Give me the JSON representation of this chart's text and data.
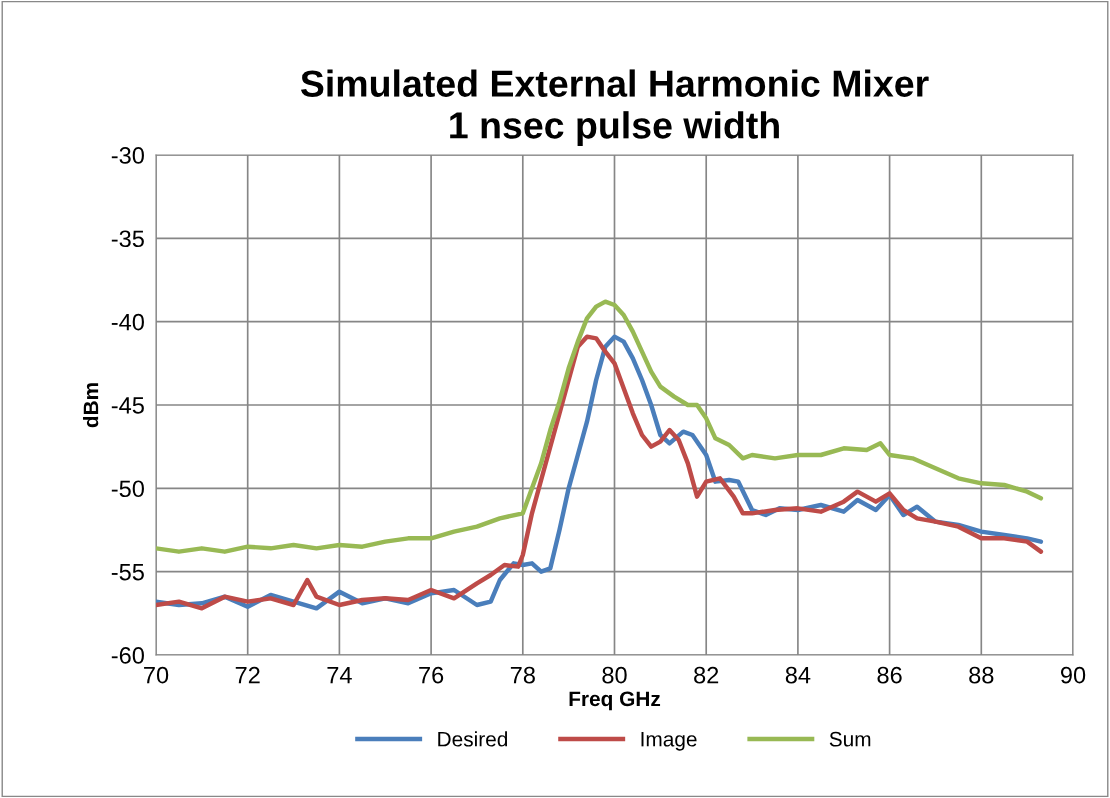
{
  "chart_data": {
    "type": "line",
    "title": "Simulated External Harmonic Mixer\n1 nsec pulse width",
    "xlabel": "Freq GHz",
    "ylabel": "dBm",
    "xlim": [
      70,
      90
    ],
    "xticks": [
      70,
      72,
      74,
      76,
      78,
      80,
      82,
      84,
      86,
      88,
      90
    ],
    "ylim": [
      -60,
      -30
    ],
    "yticks": [
      -60,
      -55,
      -50,
      -45,
      -40,
      -35,
      -30
    ],
    "grid": true,
    "legend": "bottom",
    "marker": "none",
    "line_style": "solid",
    "series": [
      {
        "name": "Desired",
        "color": "#4a7ebb",
        "x": [
          70,
          70.5,
          71,
          71.5,
          72,
          72.5,
          73,
          73.5,
          74,
          74.5,
          75,
          75.5,
          76,
          76.5,
          77,
          77.3,
          77.5,
          77.8,
          78,
          78.2,
          78.4,
          78.6,
          78.8,
          79,
          79.2,
          79.4,
          79.6,
          79.8,
          80,
          80.2,
          80.4,
          80.6,
          80.8,
          81,
          81.2,
          81.5,
          81.7,
          82,
          82.2,
          82.5,
          82.7,
          83,
          83.3,
          83.6,
          84,
          84.5,
          85,
          85.3,
          85.7,
          86,
          86.3,
          86.6,
          87,
          87.5,
          88,
          88.5,
          89,
          89.3
        ],
        "values": [
          -56.8,
          -57,
          -56.9,
          -56.5,
          -57.1,
          -56.4,
          -56.8,
          -57.2,
          -56.2,
          -56.9,
          -56.6,
          -56.9,
          -56.3,
          -56.1,
          -57,
          -56.8,
          -55.5,
          -54.5,
          -54.6,
          -54.5,
          -55.0,
          -54.8,
          -52.5,
          -50,
          -48,
          -46,
          -43.5,
          -41.5,
          -40.9,
          -41.2,
          -42.2,
          -43.5,
          -45.0,
          -46.8,
          -47.3,
          -46.6,
          -46.8,
          -48.0,
          -49.6,
          -49.5,
          -49.6,
          -51.3,
          -51.6,
          -51.2,
          -51.3,
          -51.0,
          -51.4,
          -50.7,
          -51.3,
          -50.4,
          -51.6,
          -51.1,
          -52.0,
          -52.2,
          -52.6,
          -52.8,
          -53.0,
          -53.2
        ]
      },
      {
        "name": "Image",
        "color": "#be4b48",
        "x": [
          70,
          70.5,
          71,
          71.5,
          72,
          72.5,
          73,
          73.3,
          73.5,
          74,
          74.5,
          75,
          75.5,
          76,
          76.5,
          77,
          77.3,
          77.6,
          77.9,
          78,
          78.2,
          78.4,
          78.6,
          78.8,
          79,
          79.2,
          79.4,
          79.6,
          79.8,
          80,
          80.2,
          80.4,
          80.6,
          80.8,
          81,
          81.2,
          81.4,
          81.6,
          81.8,
          82,
          82.3,
          82.6,
          82.8,
          83,
          83.5,
          84,
          84.5,
          85,
          85.3,
          85.7,
          86,
          86.3,
          86.6,
          87,
          87.5,
          88,
          88.5,
          89,
          89.3
        ],
        "values": [
          -57.0,
          -56.8,
          -57.2,
          -56.5,
          -56.8,
          -56.6,
          -57,
          -55.5,
          -56.5,
          -57.0,
          -56.7,
          -56.6,
          -56.7,
          -56.1,
          -56.6,
          -55.7,
          -55.2,
          -54.6,
          -54.7,
          -54.0,
          -51.5,
          -49.5,
          -47.5,
          -45.5,
          -43.5,
          -41.5,
          -40.9,
          -41.0,
          -41.8,
          -42.5,
          -44.0,
          -45.5,
          -46.8,
          -47.5,
          -47.2,
          -46.5,
          -47.1,
          -48.5,
          -50.5,
          -49.6,
          -49.4,
          -50.5,
          -51.5,
          -51.5,
          -51.3,
          -51.2,
          -51.4,
          -50.8,
          -50.2,
          -50.8,
          -50.3,
          -51.3,
          -51.8,
          -52,
          -52.3,
          -53,
          -53,
          -53.2,
          -53.8
        ]
      },
      {
        "name": "Sum",
        "color": "#98b954",
        "x": [
          70,
          70.5,
          71,
          71.5,
          72,
          72.5,
          73,
          73.5,
          74,
          74.5,
          75,
          75.5,
          76,
          76.5,
          77,
          77.5,
          78,
          78.2,
          78.4,
          78.6,
          78.8,
          79,
          79.2,
          79.4,
          79.6,
          79.8,
          80,
          80.2,
          80.4,
          80.6,
          80.8,
          81,
          81.3,
          81.6,
          81.8,
          82,
          82.2,
          82.5,
          82.8,
          83,
          83.5,
          84,
          84.5,
          85,
          85.5,
          85.8,
          86,
          86.5,
          87,
          87.5,
          88,
          88.5,
          89,
          89.3
        ],
        "values": [
          -53.6,
          -53.8,
          -53.6,
          -53.8,
          -53.5,
          -53.6,
          -53.4,
          -53.6,
          -53.4,
          -53.5,
          -53.2,
          -53.0,
          -53,
          -52.6,
          -52.3,
          -51.8,
          -51.5,
          -50,
          -48.5,
          -46.5,
          -44.8,
          -42.8,
          -41.2,
          -39.8,
          -39.1,
          -38.8,
          -39.0,
          -39.6,
          -40.6,
          -41.8,
          -43.0,
          -43.9,
          -44.5,
          -45.0,
          -45.0,
          -45.8,
          -47.0,
          -47.4,
          -48.2,
          -48.0,
          -48.2,
          -48.0,
          -48.0,
          -47.6,
          -47.7,
          -47.3,
          -48.0,
          -48.2,
          -48.8,
          -49.4,
          -49.7,
          -49.8,
          -50.2,
          -50.6
        ]
      }
    ]
  }
}
